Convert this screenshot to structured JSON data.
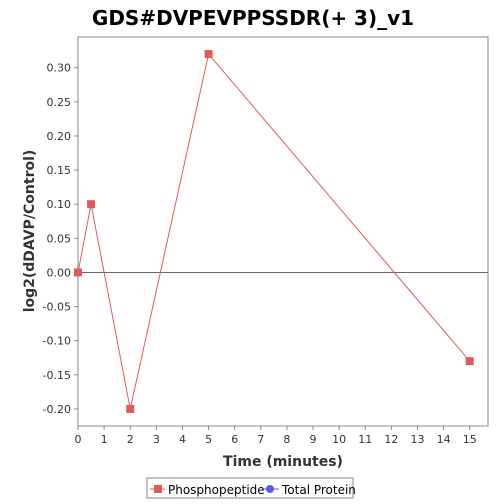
{
  "chart_data": {
    "type": "line",
    "title": "GDS#DVPEVPPSSDR(+ 3)_v1",
    "xlabel": "Time (minutes)",
    "ylabel": "log2(dDAVP/Control)",
    "xlim": [
      0,
      15.7
    ],
    "ylim": [
      -0.225,
      0.345
    ],
    "x_ticks": [
      "0",
      "1",
      "2",
      "3",
      "4",
      "5",
      "6",
      "7",
      "8",
      "9",
      "10",
      "11",
      "12",
      "13",
      "14",
      "15"
    ],
    "y_ticks": [
      "0.30",
      "0.25",
      "0.20",
      "0.15",
      "0.10",
      "0.05",
      "0.00",
      "-0.05",
      "-0.10",
      "-0.15",
      "-0.20"
    ],
    "reference_line_y": 0,
    "grid": false,
    "legend_position": "bottom",
    "series": [
      {
        "name": "Phosphopeptide",
        "color": "#e05a5a",
        "marker": "square",
        "x": [
          0,
          0.5,
          2,
          5,
          15
        ],
        "y": [
          0.0,
          0.1,
          -0.2,
          0.32,
          -0.13
        ]
      },
      {
        "name": "Total Protein",
        "color": "#5a5ae0",
        "marker": "circle",
        "x": [],
        "y": []
      }
    ]
  }
}
